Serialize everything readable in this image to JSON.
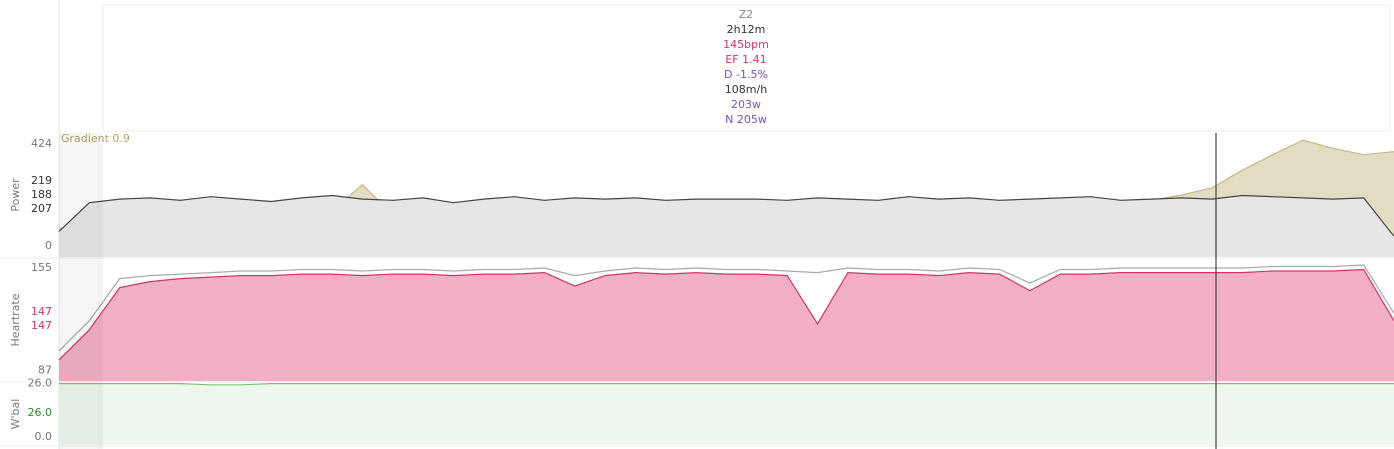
{
  "summary": [
    {
      "text": "Z2",
      "color": "#888888"
    },
    {
      "text": "2h12m",
      "color": "#333333"
    },
    {
      "text": "145bpm",
      "color": "#d6336c"
    },
    {
      "text": "EF 1.41",
      "color": "#d6336c"
    },
    {
      "text": "D -1.5%",
      "color": "#7b4fc9"
    },
    {
      "text": "108m/h",
      "color": "#333333"
    },
    {
      "text": "203w",
      "color": "#7b4fc9"
    },
    {
      "text": "N 205w",
      "color": "#7b4fc9"
    }
  ],
  "cursor": {
    "x": 114.4,
    "color": "#444444"
  },
  "chart_data": [
    {
      "type": "line",
      "ylabel": "Power",
      "annotation": "Gradient 0.9",
      "annotation_color": "#b5a46a",
      "x": [
        0,
        3,
        6,
        9,
        12,
        15,
        18,
        21,
        24,
        27,
        30,
        33,
        36,
        39,
        42,
        45,
        48,
        51,
        54,
        57,
        60,
        63,
        66,
        69,
        72,
        75,
        78,
        81,
        84,
        87,
        90,
        93,
        96,
        99,
        102,
        105,
        108,
        111,
        114,
        117,
        120,
        123,
        126,
        129,
        132
      ],
      "xlim": [
        0,
        132
      ],
      "ylim": [
        -46,
        470
      ],
      "yticks": [
        0,
        424
      ],
      "y2lim": [
        -2,
        10
      ],
      "series": [
        {
          "color": "#c9b98a",
          "fill": "#d8ccaa",
          "axis": "y2",
          "values": [
            0.8,
            0.6,
            0.4,
            0.0,
            -0.2,
            -0.4,
            -0.5,
            -0.6,
            -0.2,
            2.5,
            5.0,
            2.1,
            0.1,
            -0.2,
            0.2,
            -0.1,
            -0.4,
            -0.5,
            -0.4,
            -0.5,
            -0.7,
            -0.9,
            -1.1,
            -0.9,
            -0.7,
            -1.0,
            -0.8,
            -0.6,
            -0.5,
            -0.4,
            -0.2,
            0.4,
            1.0,
            2.2,
            2.5,
            3.0,
            3.5,
            4.0,
            4.7,
            6.4,
            7.9,
            9.3,
            8.5,
            7.9,
            8.2
          ]
        },
        {
          "color": "#444444",
          "fill": "#e6e6e6",
          "values": [
            60,
            180,
            195,
            200,
            190,
            205,
            195,
            185,
            200,
            210,
            195,
            190,
            200,
            180,
            195,
            205,
            190,
            200,
            195,
            200,
            190,
            195,
            195,
            195,
            190,
            200,
            195,
            190,
            205,
            195,
            200,
            190,
            195,
            200,
            205,
            190,
            195,
            200,
            195,
            210,
            205,
            200,
            195,
            200,
            40
          ]
        }
      ],
      "readouts": [
        {
          "value": 219,
          "color": "#333333"
        },
        {
          "value": 188,
          "color": "#333333"
        },
        {
          "value": 207,
          "color": "#333333"
        }
      ]
    },
    {
      "type": "line",
      "ylabel": "Heartrate",
      "x": [
        0,
        3,
        6,
        9,
        12,
        15,
        18,
        21,
        24,
        27,
        30,
        33,
        36,
        39,
        42,
        45,
        48,
        51,
        54,
        57,
        60,
        63,
        66,
        69,
        72,
        75,
        78,
        81,
        84,
        87,
        90,
        93,
        96,
        99,
        102,
        105,
        108,
        111,
        114,
        117,
        120,
        123,
        126,
        129,
        132
      ],
      "xlim": [
        0,
        132
      ],
      "ylim": [
        80,
        161
      ],
      "yticks": [
        87,
        155
      ],
      "series": [
        {
          "color": "#aaaaaa",
          "values": [
            100,
            120,
            148,
            150,
            151,
            152,
            153,
            153,
            154,
            154,
            153,
            154,
            154,
            153,
            154,
            154,
            155,
            150,
            153,
            155,
            154,
            155,
            154,
            154,
            153,
            152,
            155,
            154,
            154,
            153,
            155,
            154,
            145,
            154,
            154,
            155,
            155,
            155,
            155,
            155,
            156,
            156,
            156,
            157,
            125
          ]
        },
        {
          "color": "#d6336c",
          "fill": "#f3b0c4",
          "values": [
            94,
            114,
            142,
            146,
            148,
            149,
            150,
            150,
            151,
            151,
            150,
            151,
            151,
            150,
            151,
            151,
            152,
            143,
            150,
            152,
            151,
            152,
            151,
            151,
            150,
            118,
            152,
            151,
            151,
            150,
            152,
            151,
            140,
            151,
            151,
            152,
            152,
            152,
            152,
            152,
            153,
            153,
            153,
            154,
            120
          ]
        }
      ],
      "readouts": [
        {
          "value": 147,
          "color": "#d6336c"
        },
        {
          "value": 147,
          "color": "#d6336c"
        }
      ]
    },
    {
      "type": "line",
      "ylabel": "W'bal",
      "x": [
        0,
        3,
        6,
        9,
        12,
        15,
        18,
        21,
        24,
        27,
        30,
        33,
        36,
        39,
        42,
        45,
        48,
        51,
        54,
        57,
        60,
        63,
        66,
        69,
        72,
        75,
        78,
        81,
        84,
        87,
        90,
        93,
        96,
        99,
        102,
        105,
        108,
        111,
        114,
        117,
        120,
        123,
        126,
        129,
        132
      ],
      "xlim": [
        0,
        132
      ],
      "ylim": [
        -4,
        26.3
      ],
      "yticks": [
        {
          "value": 26,
          "label": "26.0"
        },
        {
          "value": 0,
          "label": "0.0"
        }
      ],
      "series": [
        {
          "color": "#7cc47c",
          "fill": "#eef7ee",
          "values": [
            26,
            26,
            26,
            26,
            26,
            25.4,
            25.4,
            26,
            26,
            26,
            26,
            26,
            26,
            26,
            26,
            26,
            26,
            26,
            26,
            26,
            26,
            26,
            26,
            26,
            26,
            26,
            26,
            26,
            26,
            26,
            26,
            26,
            26,
            26,
            26,
            26,
            26,
            26,
            26,
            26,
            26,
            26,
            26,
            26,
            26
          ]
        }
      ],
      "readouts": [
        {
          "value": 26,
          "label": "26.0",
          "color": "#2e8b2e"
        }
      ]
    }
  ]
}
